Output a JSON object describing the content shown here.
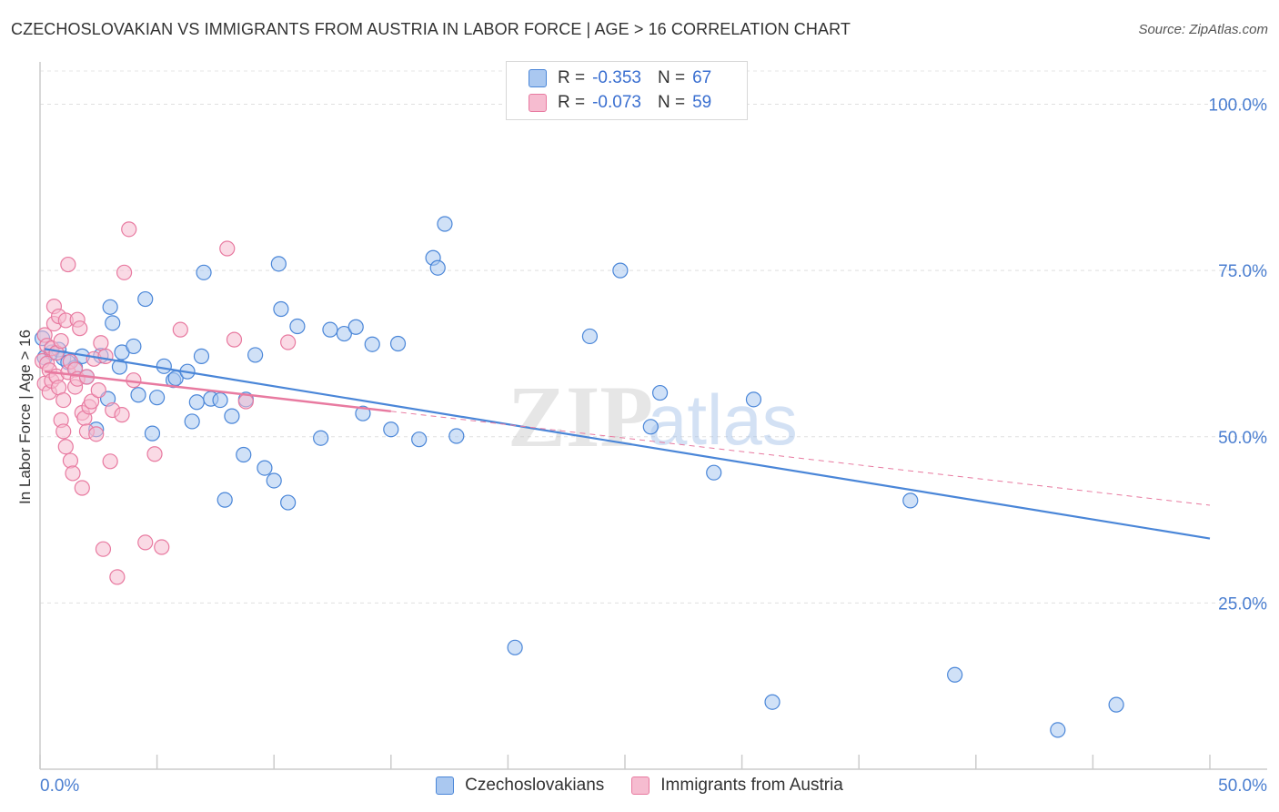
{
  "header": {
    "title": "CZECHOSLOVAKIAN VS IMMIGRANTS FROM AUSTRIA IN LABOR FORCE | AGE > 16 CORRELATION CHART",
    "source": "Source: ZipAtlas.com"
  },
  "legend": {
    "rows": [
      {
        "r_label": "R =",
        "r_value": "-0.353",
        "n_label": "N =",
        "n_value": "67"
      },
      {
        "r_label": "R =",
        "r_value": "-0.073",
        "n_label": "N =",
        "n_value": "59"
      }
    ]
  },
  "watermark": {
    "part1": "ZIP",
    "part2": "atlas"
  },
  "chart_data": {
    "type": "scatter",
    "title": "CZECHOSLOVAKIAN VS IMMIGRANTS FROM AUSTRIA IN LABOR FORCE | AGE > 16 CORRELATION CHART",
    "xlabel": "",
    "ylabel": "In Labor Force | Age > 16",
    "xlim": [
      0,
      50
    ],
    "ylim": [
      0,
      105
    ],
    "x_tick_labels": [
      "0.0%",
      "50.0%"
    ],
    "x_tick_values": [
      0,
      50
    ],
    "y_ticks": [
      {
        "value": 100,
        "label": "100.0%"
      },
      {
        "value": 75,
        "label": "75.0%"
      },
      {
        "value": 50,
        "label": "50.0%"
      },
      {
        "value": 25,
        "label": "25.0%"
      }
    ],
    "grid": true,
    "legend_position": "bottom",
    "series": [
      {
        "name": "Czechoslovakians",
        "color": "#4a86d8",
        "fill": "#aac8f0",
        "r": -0.353,
        "n": 67,
        "trend": {
          "x": [
            0.2,
            50
          ],
          "y": [
            63.2,
            34.7
          ],
          "dashed_from": null
        },
        "x": [
          0.1,
          0.2,
          0.5,
          0.8,
          1.0,
          1.2,
          1.5,
          1.8,
          2.0,
          2.4,
          2.6,
          2.9,
          3.0,
          3.1,
          3.4,
          3.5,
          4.0,
          4.2,
          4.5,
          4.8,
          5.0,
          5.3,
          5.7,
          5.8,
          6.3,
          6.5,
          6.7,
          6.9,
          7.0,
          7.3,
          7.7,
          7.9,
          8.2,
          8.7,
          8.8,
          9.2,
          9.6,
          10.0,
          10.2,
          10.3,
          10.6,
          11.0,
          12.0,
          12.4,
          13.0,
          13.5,
          13.8,
          14.2,
          15.0,
          15.3,
          16.2,
          16.8,
          17.0,
          17.3,
          17.8,
          20.3,
          23.5,
          24.8,
          26.1,
          26.5,
          28.8,
          30.5,
          31.3,
          37.2,
          39.1,
          43.5,
          46.0
        ],
        "y": [
          64.8,
          61.9,
          62.7,
          63.1,
          61.8,
          61.2,
          60.4,
          62.1,
          59.0,
          51.1,
          62.2,
          55.7,
          69.5,
          67.1,
          60.5,
          62.7,
          63.6,
          56.3,
          70.7,
          50.5,
          55.9,
          60.6,
          58.5,
          58.8,
          59.8,
          52.3,
          55.2,
          62.1,
          74.7,
          55.7,
          55.5,
          40.5,
          53.1,
          47.3,
          55.6,
          62.3,
          45.3,
          43.4,
          76.0,
          69.2,
          40.1,
          66.6,
          49.8,
          66.1,
          65.5,
          66.5,
          53.5,
          63.9,
          51.1,
          64.0,
          49.6,
          76.9,
          75.4,
          82.0,
          50.1,
          18.3,
          65.1,
          75.0,
          51.5,
          56.6,
          44.6,
          55.6,
          10.1,
          40.4,
          14.2,
          5.9,
          9.7
        ]
      },
      {
        "name": "Immigrants from Austria",
        "color": "#e87aa0",
        "fill": "#f6bcd0",
        "r": -0.073,
        "n": 59,
        "trend": {
          "x": [
            0.2,
            50
          ],
          "y": [
            59.8,
            39.7
          ],
          "dashed_from": 15.0
        },
        "x": [
          0.1,
          0.2,
          0.2,
          0.3,
          0.3,
          0.4,
          0.4,
          0.5,
          0.5,
          0.6,
          0.6,
          0.7,
          0.7,
          0.8,
          0.8,
          0.9,
          0.9,
          1.0,
          1.0,
          1.1,
          1.1,
          1.2,
          1.2,
          1.3,
          1.3,
          1.4,
          1.5,
          1.5,
          1.6,
          1.6,
          1.7,
          1.8,
          1.8,
          1.9,
          2.0,
          2.0,
          2.1,
          2.2,
          2.3,
          2.4,
          2.5,
          2.6,
          2.7,
          2.8,
          3.0,
          3.1,
          3.3,
          3.5,
          3.6,
          3.8,
          4.0,
          4.5,
          4.9,
          5.2,
          6.0,
          8.0,
          8.3,
          8.8,
          10.6
        ],
        "y": [
          61.4,
          65.3,
          58.0,
          61.0,
          63.7,
          60.0,
          56.7,
          58.4,
          63.3,
          67.0,
          69.6,
          62.6,
          59.1,
          68.1,
          57.4,
          64.4,
          52.5,
          50.8,
          55.5,
          67.5,
          48.5,
          59.7,
          75.9,
          46.4,
          61.3,
          44.5,
          57.5,
          60.1,
          58.7,
          67.6,
          66.3,
          53.6,
          42.3,
          52.8,
          59.0,
          50.8,
          54.5,
          55.3,
          61.7,
          50.4,
          57.0,
          64.1,
          33.1,
          62.1,
          46.3,
          54.0,
          28.9,
          53.3,
          74.7,
          81.2,
          58.5,
          34.1,
          47.4,
          33.4,
          66.1,
          78.3,
          64.6,
          55.3,
          64.2
        ]
      }
    ]
  },
  "bottom_legend": [
    {
      "label": "Czechoslovakians"
    },
    {
      "label": "Immigrants from Austria"
    }
  ]
}
